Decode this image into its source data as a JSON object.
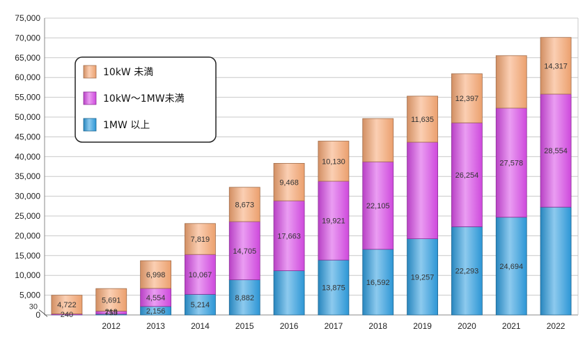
{
  "chart_data": {
    "type": "bar",
    "stacked": true,
    "categories": [
      "",
      "2012",
      "2013",
      "2014",
      "2015",
      "2016",
      "2017",
      "2018",
      "2019",
      "2020",
      "2021",
      "2022"
    ],
    "series": [
      {
        "name": "1MW 以上",
        "color": "#2f9ee0",
        "values": [
          30,
          219,
          2156,
          5214,
          8882,
          11180,
          13875,
          16592,
          19257,
          22293,
          24694,
          27250
        ],
        "labels": [
          "",
          "",
          "2,156",
          "5,214",
          "8,882",
          "",
          "13,875",
          "16,592",
          "19,257",
          "22,293",
          "24,694",
          ""
        ]
      },
      {
        "name": "10kW～1MW未満",
        "color": "#d94de8",
        "values": [
          240,
          755,
          4554,
          10067,
          14705,
          17663,
          19921,
          22105,
          24400,
          26254,
          27578,
          28554
        ],
        "labels": [
          "240",
          "755",
          "4,554",
          "10,067",
          "14,705",
          "17,663",
          "19,921",
          "22,105",
          "",
          "26,254",
          "27,578",
          "28,554"
        ]
      },
      {
        "name": "10kW 未満",
        "color": "#f7a874",
        "values": [
          4722,
          5691,
          6998,
          7819,
          8673,
          9468,
          10130,
          10930,
          11635,
          12397,
          13250,
          14317
        ],
        "labels": [
          "4,722",
          "5,691",
          "6,998",
          "7,819",
          "8,673",
          "9,468",
          "10,130",
          "",
          "11,635",
          "12,397",
          "",
          "14,317"
        ]
      }
    ],
    "extra_labels": [
      {
        "category": "",
        "text": "30",
        "series": "1MW 以上"
      },
      {
        "category": "2012",
        "text": "219",
        "series": "1MW 以上"
      }
    ],
    "ylim": [
      0,
      75000
    ],
    "yticks": [
      "0",
      "5,000",
      "10,000",
      "15,000",
      "20,000",
      "25,000",
      "30,000",
      "35,000",
      "40,000",
      "45,000",
      "50,000",
      "55,000",
      "60,000",
      "65,000",
      "70,000",
      "75,000"
    ],
    "ytick_values": [
      0,
      5000,
      10000,
      15000,
      20000,
      25000,
      30000,
      35000,
      40000,
      45000,
      50000,
      55000,
      60000,
      65000,
      70000,
      75000
    ],
    "grid": true,
    "legend_position": "top-left",
    "legend": [
      {
        "label": "10kW 未満",
        "color": "#f7a874"
      },
      {
        "label": "10kW～1MW未満",
        "color": "#d94de8"
      },
      {
        "label": "1MW 以上",
        "color": "#2f9ee0"
      }
    ],
    "title": "",
    "xlabel": "",
    "ylabel": ""
  }
}
